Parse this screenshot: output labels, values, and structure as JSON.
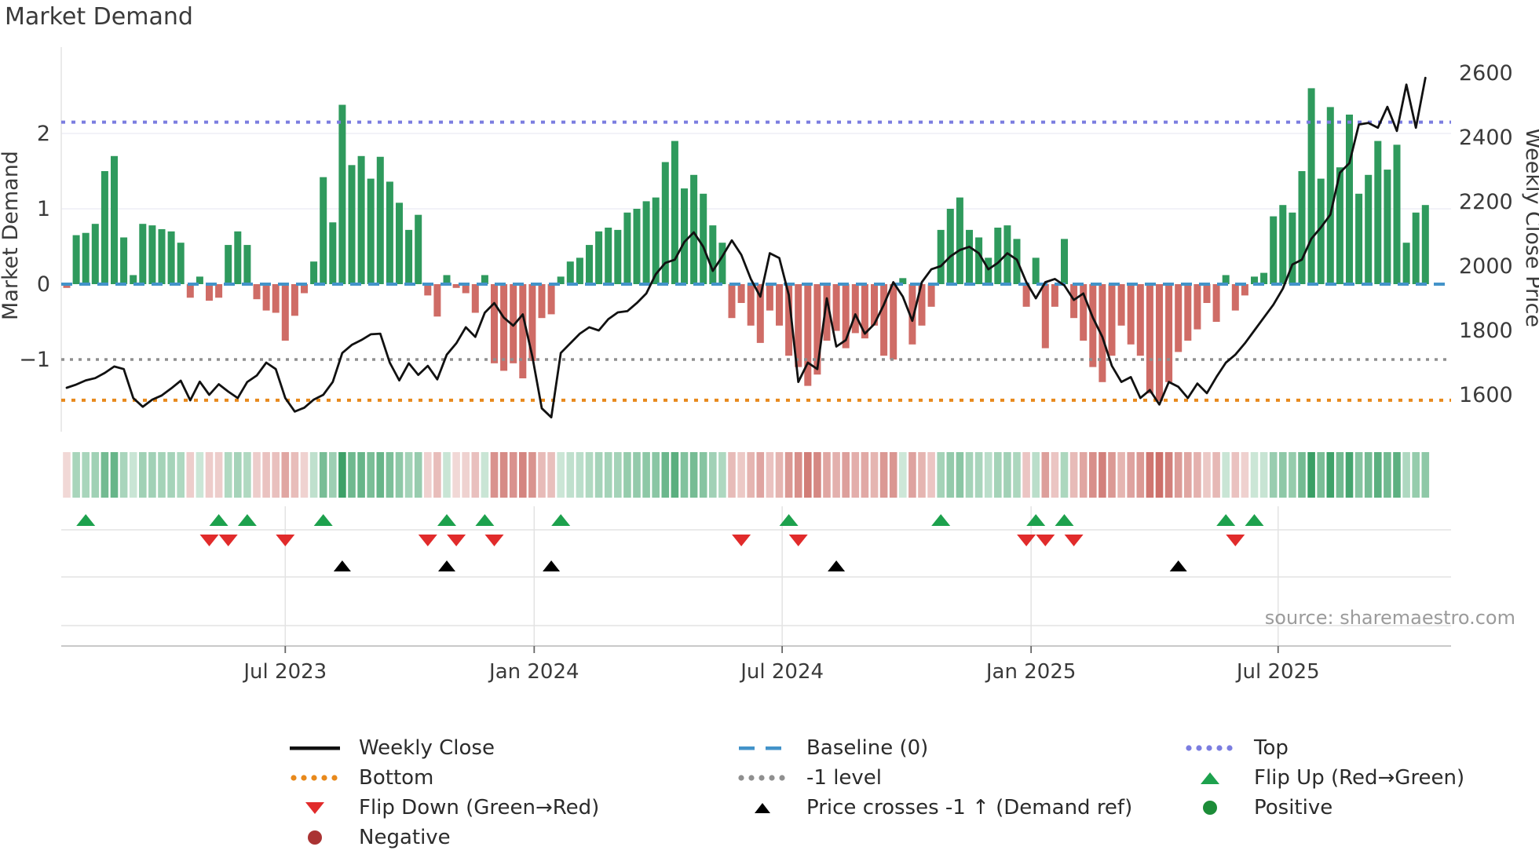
{
  "page": {
    "source_text": "source: sharemaestro.com"
  },
  "colors": {
    "bar_green": "#2f9a5d",
    "bar_red": "#cf6c66",
    "price_line": "#111111",
    "baseline_blue": "#4393c9",
    "top_purple": "#7b7de0",
    "minus1_gray": "#8f8f8f",
    "bottom_orange": "#e8891c",
    "flipup_green": "#1da14d",
    "flipdown_red": "#e12b2b",
    "cross_black": "#000000",
    "positive_green": "#1c8c38",
    "negative_red": "#aa3333",
    "grid": "#ededf5",
    "grid_dark": "#e3e3e3",
    "spine": "#c9c9c9",
    "axis_text": "#3a3a3a",
    "source_gray": "#9b9b9b",
    "heat_pos": "47,154,93",
    "heat_neg": "197,90,83"
  },
  "chart_data": {
    "type": "bar+line",
    "title": "Market Demand",
    "ylabel_left": "Market Demand",
    "ylabel_right": "Weekly Close Price",
    "left_ticks": [
      2,
      1,
      0,
      -1
    ],
    "right_ticks": [
      2600,
      2400,
      2200,
      2000,
      1800,
      1600
    ],
    "x_ticks": [
      {
        "label": "Jul 2023",
        "week": 23
      },
      {
        "label": "Jan 2024",
        "week": 49.2
      },
      {
        "label": "Jul 2024",
        "week": 75.3
      },
      {
        "label": "Jan 2025",
        "week": 101.5
      },
      {
        "label": "Jul 2025",
        "week": 127.5
      }
    ],
    "reference_lines": {
      "baseline": 0,
      "top": 2.15,
      "minus_one_level": -1,
      "bottom": -1.54
    },
    "series": {
      "market_demand": [
        -0.05,
        0.65,
        0.68,
        0.8,
        1.5,
        1.7,
        0.62,
        0.12,
        0.8,
        0.78,
        0.73,
        0.7,
        0.55,
        -0.18,
        0.1,
        -0.22,
        -0.18,
        0.52,
        0.7,
        0.52,
        -0.2,
        -0.35,
        -0.38,
        -0.75,
        -0.42,
        -0.12,
        0.3,
        1.42,
        0.82,
        2.38,
        1.58,
        1.7,
        1.4,
        1.69,
        1.36,
        1.08,
        0.72,
        0.92,
        -0.15,
        -0.43,
        0.12,
        -0.05,
        -0.12,
        -0.38,
        0.12,
        -1.05,
        -1.15,
        -1.05,
        -1.25,
        -1.02,
        -0.45,
        -0.4,
        0.1,
        0.3,
        0.35,
        0.52,
        0.7,
        0.75,
        0.72,
        0.95,
        1.0,
        1.1,
        1.15,
        1.62,
        1.9,
        1.27,
        1.45,
        1.2,
        0.78,
        0.55,
        -0.45,
        -0.25,
        -0.55,
        -0.78,
        -0.35,
        -0.55,
        -0.95,
        -1.1,
        -1.35,
        -1.2,
        -0.75,
        -0.62,
        -0.85,
        -0.65,
        -0.72,
        -0.55,
        -0.95,
        -1.0,
        0.08,
        -0.8,
        -0.55,
        -0.3,
        0.72,
        1.0,
        1.15,
        0.72,
        0.62,
        0.35,
        0.75,
        0.78,
        0.6,
        -0.3,
        0.35,
        -0.85,
        -0.3,
        0.6,
        -0.45,
        -0.75,
        -1.1,
        -1.3,
        -0.95,
        -0.55,
        -0.8,
        -0.95,
        -1.45,
        -1.55,
        -1.3,
        -0.9,
        -0.75,
        -0.6,
        -0.25,
        -0.5,
        0.12,
        -0.35,
        -0.15,
        0.1,
        0.15,
        0.9,
        1.05,
        0.95,
        1.5,
        2.6,
        1.4,
        2.35,
        1.55,
        2.25,
        1.2,
        1.45,
        1.9,
        1.52,
        1.85,
        0.55,
        0.95,
        1.05
      ],
      "weekly_close": [
        1622,
        1632,
        1645,
        1652,
        1668,
        1688,
        1680,
        1590,
        1563,
        1585,
        1598,
        1620,
        1644,
        1583,
        1641,
        1600,
        1633,
        1610,
        1590,
        1640,
        1660,
        1700,
        1680,
        1590,
        1548,
        1560,
        1585,
        1600,
        1640,
        1730,
        1755,
        1770,
        1788,
        1790,
        1700,
        1645,
        1698,
        1662,
        1690,
        1648,
        1725,
        1760,
        1810,
        1780,
        1855,
        1885,
        1840,
        1815,
        1850,
        1720,
        1558,
        1530,
        1730,
        1760,
        1790,
        1810,
        1800,
        1835,
        1856,
        1860,
        1885,
        1915,
        1975,
        2010,
        2020,
        2075,
        2105,
        2060,
        1985,
        2030,
        2080,
        2035,
        1960,
        1905,
        2040,
        2025,
        1910,
        1640,
        1700,
        1680,
        1900,
        1750,
        1770,
        1850,
        1790,
        1820,
        1880,
        1950,
        1905,
        1830,
        1950,
        1990,
        2000,
        2030,
        2050,
        2060,
        2040,
        1990,
        2010,
        2040,
        2020,
        1950,
        1900,
        1950,
        1960,
        1940,
        1895,
        1915,
        1840,
        1780,
        1690,
        1640,
        1655,
        1590,
        1615,
        1570,
        1640,
        1625,
        1590,
        1635,
        1605,
        1655,
        1700,
        1725,
        1760,
        1800,
        1840,
        1880,
        1930,
        2005,
        2020,
        2085,
        2120,
        2160,
        2290,
        2320,
        2440,
        2445,
        2430,
        2495,
        2420,
        2564,
        2430,
        2585
      ]
    },
    "markers": {
      "flip_up_weeks": [
        2,
        16,
        19,
        27,
        40,
        44,
        52,
        76,
        92,
        102,
        105,
        122,
        125
      ],
      "flip_down_weeks": [
        15,
        17,
        23,
        38,
        41,
        45,
        71,
        77,
        101,
        103,
        106,
        123
      ],
      "price_cross_weeks": [
        29,
        40,
        51,
        81,
        117
      ]
    },
    "legend": [
      {
        "label": "Weekly Close",
        "swatch": "line-black"
      },
      {
        "label": "Baseline (0)",
        "swatch": "dash-blue"
      },
      {
        "label": "Top",
        "swatch": "dot-purple"
      },
      {
        "label": "Bottom",
        "swatch": "dot-orange"
      },
      {
        "label": "-1 level",
        "swatch": "dot-gray"
      },
      {
        "label": "Flip Up (Red→Green)",
        "swatch": "tri-up-green"
      },
      {
        "label": "Flip Down (Green→Red)",
        "swatch": "tri-down-red"
      },
      {
        "label": "Price crosses -1 ↑ (Demand ref)",
        "swatch": "tri-up-black"
      },
      {
        "label": "Positive",
        "swatch": "circle-green"
      },
      {
        "label": "Negative",
        "swatch": "circle-red"
      }
    ]
  }
}
